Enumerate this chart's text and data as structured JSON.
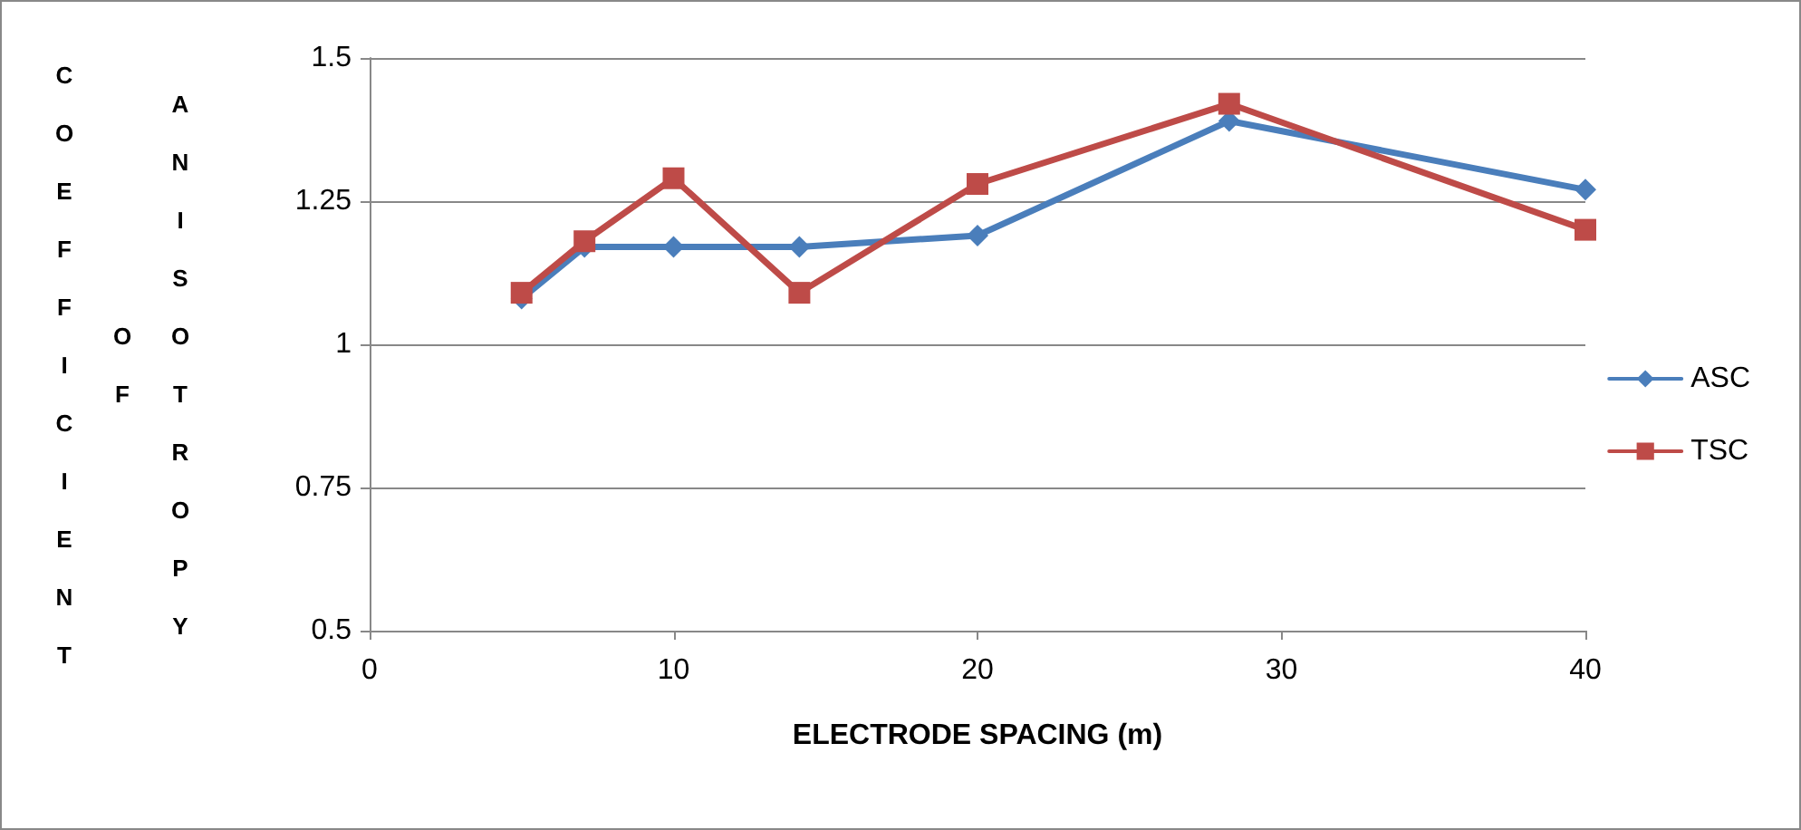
{
  "chart_data": {
    "type": "line",
    "xlabel": "ELECTRODE SPACING (m)",
    "ylabel": "COEFFICIENT OF ANISOTROPY",
    "x": [
      5,
      7.07,
      10,
      14.14,
      20,
      28.28,
      40
    ],
    "series": [
      {
        "name": "ASC",
        "color": "#4a7ebb",
        "marker": "diamond",
        "values": [
          1.08,
          1.17,
          1.17,
          1.17,
          1.19,
          1.39,
          1.27
        ]
      },
      {
        "name": "TSC",
        "color": "#be4b48",
        "marker": "square",
        "values": [
          1.09,
          1.18,
          1.29,
          1.09,
          1.28,
          1.42,
          1.2
        ]
      }
    ],
    "xlim": [
      0,
      40
    ],
    "xticks": [
      0,
      10,
      20,
      30,
      40
    ],
    "ylim": [
      0.5,
      1.5
    ],
    "yticks": [
      0.5,
      0.75,
      1,
      1.25,
      1.5
    ],
    "grid": "y",
    "legend": "right",
    "line_style": "solid"
  }
}
